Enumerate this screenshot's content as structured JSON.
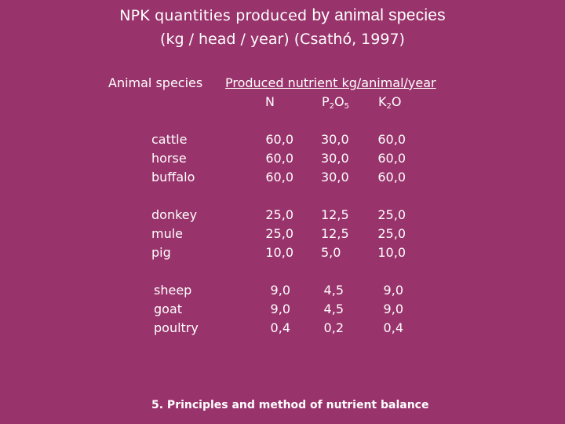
{
  "title": {
    "line1_a": "NPK quantities produced ",
    "line1_b": "by animal species",
    "line2": "(kg / head / year) (Csathó, 1997)"
  },
  "header": {
    "species": "Animal species",
    "produced": "Produced nutrient kg/animal/year",
    "col_n": "N",
    "col_p_base": "P",
    "col_p_sub1": "2",
    "col_p_mid": "O",
    "col_p_sub2": "5",
    "col_k_base": "K",
    "col_k_sub": "2",
    "col_k_end": "O"
  },
  "rows": [
    {
      "species": "cattle",
      "n": "60,0",
      "p": "30,0",
      "k": "60,0"
    },
    {
      "species": "horse",
      "n": "60,0",
      "p": "30,0",
      "k": "60,0"
    },
    {
      "species": "buffalo",
      "n": "60,0",
      "p": "30,0",
      "k": "60,0"
    },
    {
      "species": "donkey",
      "n": "25,0",
      "p": "12,5",
      "k": "25,0"
    },
    {
      "species": "mule",
      "n": "25,0",
      "p": "12,5",
      "k": "25,0"
    },
    {
      "species": "pig",
      "n": "10,0",
      "p": "5,0",
      "k": "10,0"
    },
    {
      "species": "sheep",
      "n": "9,0",
      "p": "4,5",
      "k": "9,0"
    },
    {
      "species": "goat",
      "n": "9,0",
      "p": "4,5",
      "k": "9,0"
    },
    {
      "species": "poultry",
      "n": "0,4",
      "p": "0,2",
      "k": "0,4"
    }
  ],
  "footer": "5. Principles and method of nutrient balance",
  "colors": {
    "background": "#99336b",
    "text": "#ffffff"
  }
}
